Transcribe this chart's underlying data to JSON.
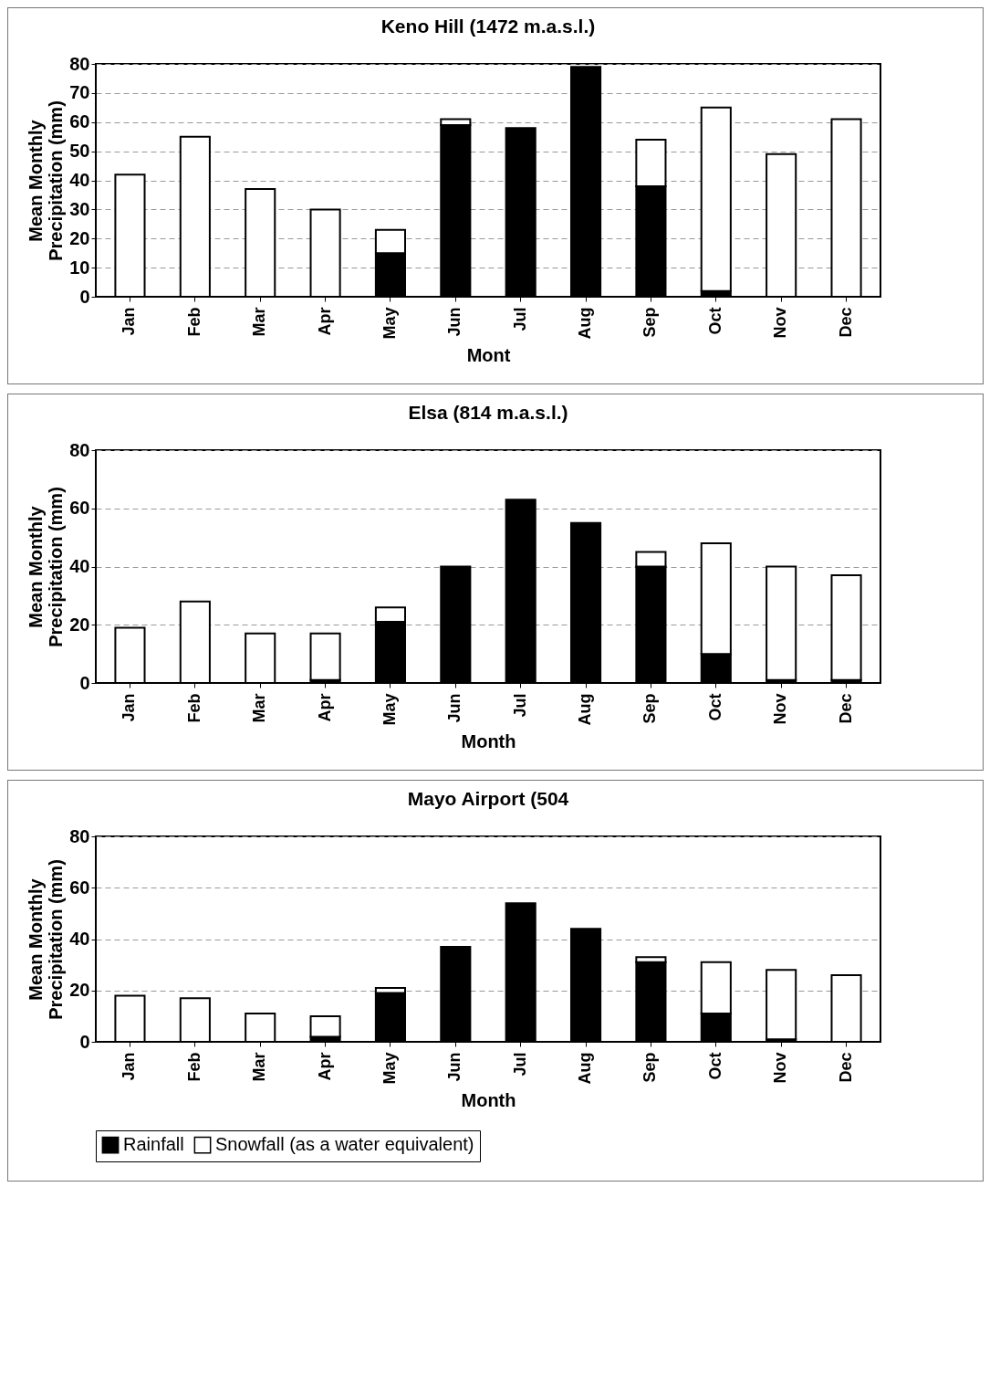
{
  "chart_data": [
    {
      "type": "bar",
      "title": "Keno Hill (1472 m.a.s.l.)",
      "xlabel": "Mont",
      "ylabel": "Mean Monthly Precipitation (mm)",
      "categories": [
        "Jan",
        "Feb",
        "Mar",
        "Apr",
        "May",
        "Jun",
        "Jul",
        "Aug",
        "Sep",
        "Oct",
        "Nov",
        "Dec"
      ],
      "stacked": true,
      "ylim": [
        0,
        80
      ],
      "yticks": [
        0,
        10,
        20,
        30,
        40,
        50,
        60,
        70,
        80
      ],
      "grid": "y",
      "legend": false,
      "series": [
        {
          "color": "#000000",
          "values": [
            0,
            0,
            0,
            0,
            15,
            59,
            58,
            79,
            38,
            2,
            0,
            0
          ]
        },
        {
          "color": "#ffffff",
          "values": [
            42,
            55,
            37,
            30,
            8,
            2,
            0,
            0,
            16,
            63,
            49,
            61
          ]
        }
      ]
    },
    {
      "type": "bar",
      "title": "Elsa (814 m.a.s.l.)",
      "xlabel": "Month",
      "ylabel": "Mean Monthly Precipitation (mm)",
      "categories": [
        "Jan",
        "Feb",
        "Mar",
        "Apr",
        "May",
        "Jun",
        "Jul",
        "Aug",
        "Sep",
        "Oct",
        "Nov",
        "Dec"
      ],
      "stacked": true,
      "ylim": [
        0,
        80
      ],
      "yticks": [
        0,
        20,
        40,
        60,
        80
      ],
      "grid": "y",
      "legend": false,
      "series": [
        {
          "color": "#000000",
          "values": [
            0,
            0,
            0,
            1,
            21,
            40,
            63,
            55,
            40,
            10,
            1,
            1
          ]
        },
        {
          "color": "#ffffff",
          "values": [
            19,
            28,
            17,
            16,
            5,
            0,
            0,
            0,
            5,
            38,
            39,
            36
          ]
        }
      ]
    },
    {
      "type": "bar",
      "title": "Mayo Airport (504",
      "xlabel": "Month",
      "ylabel": "Mean Monthly Precipitation (mm)",
      "categories": [
        "Jan",
        "Feb",
        "Mar",
        "Apr",
        "May",
        "Jun",
        "Jul",
        "Aug",
        "Sep",
        "Oct",
        "Nov",
        "Dec"
      ],
      "stacked": true,
      "ylim": [
        0,
        80
      ],
      "yticks": [
        0,
        20,
        40,
        60,
        80
      ],
      "grid": "y",
      "legend": "bottom",
      "series": [
        {
          "name": "Rainfall",
          "color": "#000000",
          "values": [
            0,
            0,
            0,
            2,
            19,
            37,
            54,
            44,
            31,
            11,
            1,
            0
          ]
        },
        {
          "name": "Snowfall (as a water equivalent)",
          "color": "#ffffff",
          "values": [
            18,
            17,
            11,
            8,
            2,
            0,
            0,
            0,
            2,
            20,
            27,
            26
          ]
        }
      ]
    }
  ]
}
